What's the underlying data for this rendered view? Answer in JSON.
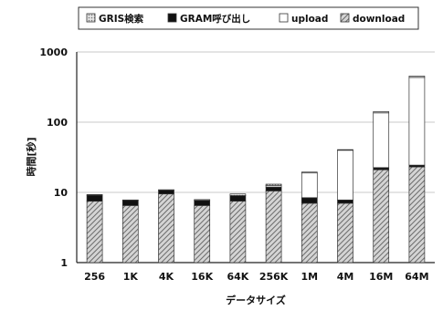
{
  "chart_data": {
    "type": "bar",
    "stacked": true,
    "log_scale": true,
    "grid": true,
    "legend_position": "top",
    "xlabel": "データサイズ",
    "ylabel": "時間[秒]",
    "ylim": [
      1,
      1000
    ],
    "y_ticks": [
      "1",
      "10",
      "100",
      "1000"
    ],
    "categories": [
      "256",
      "1K",
      "4K",
      "16K",
      "64K",
      "256K",
      "1M",
      "4M",
      "16M",
      "64M"
    ],
    "series": [
      {
        "name": "GRIS検索",
        "pattern": "dots",
        "color": "#b8b8b8",
        "values": [
          0.2,
          0.1,
          0.2,
          0.2,
          0.5,
          0.6,
          0.6,
          0.9,
          6,
          20
        ]
      },
      {
        "name": "GRAM呼び出し",
        "pattern": "solid",
        "color": "#111111",
        "values": [
          1.6,
          1.2,
          1.2,
          1.2,
          1.5,
          1.4,
          1.4,
          0.8,
          1.5,
          1.5
        ]
      },
      {
        "name": "upload",
        "pattern": "solid",
        "color": "#ffffff",
        "values": [
          0,
          0,
          0,
          0,
          0,
          0.6,
          10.5,
          32,
          113,
          410
        ]
      },
      {
        "name": "download",
        "pattern": "hatch",
        "color": "#9a9a9a",
        "values": [
          6.5,
          5.5,
          8.5,
          5.5,
          6.5,
          9.5,
          6,
          6,
          20,
          22
        ]
      }
    ],
    "stack_order": [
      "download",
      "GRAM呼び出し",
      "upload",
      "GRIS検索"
    ]
  }
}
